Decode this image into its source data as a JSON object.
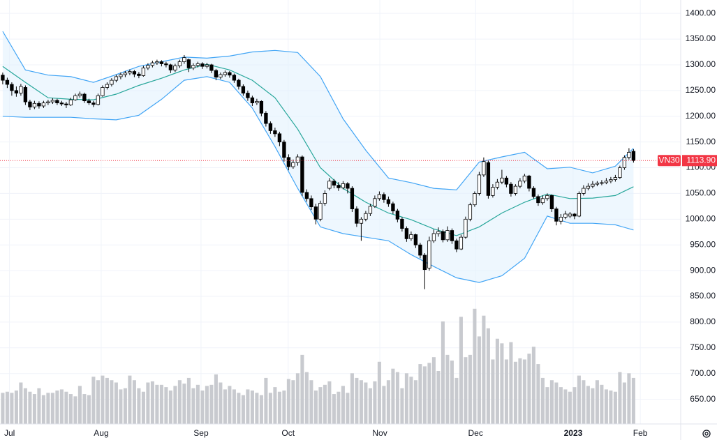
{
  "chart_data": {
    "type": "candlestick",
    "symbol": "VN30",
    "last_price": {
      "value": 1113.9,
      "label": "1113.90"
    },
    "ylim": [
      602,
      1426
    ],
    "yticks": [
      {
        "value": 650,
        "label": "650.00"
      },
      {
        "value": 700,
        "label": "700.00"
      },
      {
        "value": 750,
        "label": "750.00"
      },
      {
        "value": 800,
        "label": "800.00"
      },
      {
        "value": 850,
        "label": "850.00"
      },
      {
        "value": 900,
        "label": "900.00"
      },
      {
        "value": 950,
        "label": "950.00"
      },
      {
        "value": 1000,
        "label": "1000.00"
      },
      {
        "value": 1050,
        "label": "1050.00"
      },
      {
        "value": 1100,
        "label": "1100.00"
      },
      {
        "value": 1150,
        "label": "1150.00"
      },
      {
        "value": 1200,
        "label": "1200.00"
      },
      {
        "value": 1250,
        "label": "1250.00"
      },
      {
        "value": 1300,
        "label": "1300.00"
      },
      {
        "value": 1350,
        "label": "1350.00"
      },
      {
        "value": 1400,
        "label": "1400.00"
      }
    ],
    "xlim": [
      -0.6,
      149.4
    ],
    "xticks": [
      {
        "value": 1.5,
        "label": "Jul"
      },
      {
        "value": 21.7,
        "label": "Aug"
      },
      {
        "value": 43.7,
        "label": "Sep"
      },
      {
        "value": 62.9,
        "label": "Oct"
      },
      {
        "value": 83.1,
        "label": "Nov"
      },
      {
        "value": 104.2,
        "label": "Dec"
      },
      {
        "value": 125.7,
        "label": "2023"
      },
      {
        "value": 140.5,
        "label": "Feb"
      }
    ],
    "grid": true,
    "up_color": "#ffffff",
    "down_color": "#000000",
    "wick_color": "#000000",
    "volume_color": "#c8cacf",
    "band_color": "#42a5f5",
    "basis_color": "#26a69a",
    "band_fill": "#e3f2fd",
    "price_line_color": "#f23645",
    "candles": [
      [
        1280,
        1285,
        1262,
        1270
      ],
      [
        1270,
        1275,
        1255,
        1262
      ],
      [
        1262,
        1266,
        1240,
        1250
      ],
      [
        1250,
        1258,
        1238,
        1245
      ],
      [
        1245,
        1263,
        1240,
        1258
      ],
      [
        1256,
        1260,
        1222,
        1228
      ],
      [
        1228,
        1232,
        1212,
        1218
      ],
      [
        1218,
        1230,
        1214,
        1225
      ],
      [
        1225,
        1229,
        1215,
        1220
      ],
      [
        1220,
        1230,
        1216,
        1226
      ],
      [
        1226,
        1232,
        1222,
        1228
      ],
      [
        1228,
        1235,
        1224,
        1231
      ],
      [
        1231,
        1234,
        1222,
        1226
      ],
      [
        1226,
        1230,
        1220,
        1224
      ],
      [
        1224,
        1228,
        1216,
        1222
      ],
      [
        1222,
        1236,
        1220,
        1232
      ],
      [
        1232,
        1244,
        1230,
        1240
      ],
      [
        1240,
        1248,
        1236,
        1243
      ],
      [
        1243,
        1246,
        1226,
        1230
      ],
      [
        1230,
        1234,
        1222,
        1226
      ],
      [
        1226,
        1230,
        1218,
        1223
      ],
      [
        1223,
        1244,
        1221,
        1240
      ],
      [
        1240,
        1260,
        1238,
        1256
      ],
      [
        1256,
        1266,
        1252,
        1262
      ],
      [
        1262,
        1274,
        1258,
        1270
      ],
      [
        1270,
        1281,
        1266,
        1277
      ],
      [
        1277,
        1285,
        1272,
        1281
      ],
      [
        1281,
        1288,
        1276,
        1284
      ],
      [
        1284,
        1291,
        1280,
        1287
      ],
      [
        1287,
        1290,
        1276,
        1282
      ],
      [
        1282,
        1286,
        1274,
        1279
      ],
      [
        1279,
        1298,
        1277,
        1294
      ],
      [
        1294,
        1303,
        1290,
        1299
      ],
      [
        1299,
        1308,
        1295,
        1304
      ],
      [
        1304,
        1310,
        1300,
        1306
      ],
      [
        1306,
        1309,
        1297,
        1302
      ],
      [
        1302,
        1306,
        1295,
        1300
      ],
      [
        1300,
        1302,
        1284,
        1290
      ],
      [
        1290,
        1302,
        1286,
        1298
      ],
      [
        1298,
        1310,
        1294,
        1306
      ],
      [
        1306,
        1319,
        1302,
        1314
      ],
      [
        1310,
        1312,
        1286,
        1294
      ],
      [
        1294,
        1303,
        1290,
        1299
      ],
      [
        1299,
        1306,
        1295,
        1302
      ],
      [
        1302,
        1305,
        1292,
        1297
      ],
      [
        1297,
        1304,
        1293,
        1300
      ],
      [
        1300,
        1302,
        1284,
        1289
      ],
      [
        1289,
        1292,
        1270,
        1276
      ],
      [
        1276,
        1285,
        1272,
        1281
      ],
      [
        1281,
        1289,
        1277,
        1285
      ],
      [
        1285,
        1288,
        1275,
        1280
      ],
      [
        1280,
        1283,
        1265,
        1270
      ],
      [
        1270,
        1273,
        1252,
        1258
      ],
      [
        1258,
        1262,
        1240,
        1245
      ],
      [
        1245,
        1250,
        1230,
        1236
      ],
      [
        1236,
        1240,
        1220,
        1226
      ],
      [
        1226,
        1234,
        1222,
        1229
      ],
      [
        1229,
        1231,
        1200,
        1206
      ],
      [
        1206,
        1210,
        1180,
        1186
      ],
      [
        1186,
        1190,
        1166,
        1172
      ],
      [
        1172,
        1178,
        1160,
        1166
      ],
      [
        1166,
        1170,
        1142,
        1150
      ],
      [
        1150,
        1154,
        1112,
        1120
      ],
      [
        1120,
        1126,
        1095,
        1102
      ],
      [
        1102,
        1116,
        1098,
        1110
      ],
      [
        1110,
        1126,
        1104,
        1121
      ],
      [
        1121,
        1124,
        1045,
        1052
      ],
      [
        1052,
        1058,
        1034,
        1040
      ],
      [
        1040,
        1046,
        1018,
        1024
      ],
      [
        1024,
        1030,
        990,
        1000
      ],
      [
        1000,
        1036,
        996,
        1031
      ],
      [
        1031,
        1056,
        1026,
        1050
      ],
      [
        1060,
        1080,
        1056,
        1074
      ],
      [
        1074,
        1078,
        1060,
        1066
      ],
      [
        1066,
        1072,
        1055,
        1061
      ],
      [
        1061,
        1074,
        1058,
        1069
      ],
      [
        1069,
        1072,
        1050,
        1060
      ],
      [
        1060,
        1064,
        1014,
        1020
      ],
      [
        1020,
        1025,
        985,
        992
      ],
      [
        992,
        1004,
        958,
        1000
      ],
      [
        1000,
        1016,
        996,
        1011
      ],
      [
        1011,
        1030,
        1006,
        1025
      ],
      [
        1025,
        1046,
        1022,
        1040
      ],
      [
        1040,
        1054,
        1036,
        1048
      ],
      [
        1048,
        1052,
        1032,
        1038
      ],
      [
        1038,
        1044,
        1024,
        1030
      ],
      [
        1030,
        1034,
        1010,
        1016
      ],
      [
        1016,
        1020,
        994,
        1000
      ],
      [
        1000,
        1004,
        976,
        982
      ],
      [
        982,
        986,
        956,
        962
      ],
      [
        962,
        976,
        958,
        970
      ],
      [
        970,
        972,
        944,
        950
      ],
      [
        950,
        954,
        924,
        930
      ],
      [
        930,
        934,
        864,
        902
      ],
      [
        905,
        966,
        900,
        958
      ],
      [
        958,
        980,
        954,
        972
      ],
      [
        972,
        984,
        966,
        976
      ],
      [
        976,
        980,
        955,
        960
      ],
      [
        960,
        986,
        956,
        978
      ],
      [
        978,
        982,
        952,
        958
      ],
      [
        958,
        962,
        936,
        942
      ],
      [
        942,
        970,
        940,
        965
      ],
      [
        965,
        1005,
        962,
        1000
      ],
      [
        1000,
        1032,
        996,
        1028
      ],
      [
        1028,
        1054,
        1024,
        1050
      ],
      [
        1050,
        1092,
        1046,
        1086
      ],
      [
        1086,
        1120,
        1082,
        1112
      ],
      [
        1110,
        1114,
        1040,
        1046
      ],
      [
        1046,
        1068,
        1042,
        1062
      ],
      [
        1062,
        1078,
        1058,
        1072
      ],
      [
        1072,
        1096,
        1068,
        1080
      ],
      [
        1080,
        1084,
        1062,
        1068
      ],
      [
        1068,
        1072,
        1044,
        1050
      ],
      [
        1050,
        1068,
        1046,
        1064
      ],
      [
        1064,
        1080,
        1060,
        1074
      ],
      [
        1074,
        1088,
        1070,
        1084
      ],
      [
        1084,
        1086,
        1054,
        1060
      ],
      [
        1060,
        1064,
        1040,
        1044
      ],
      [
        1044,
        1048,
        1026,
        1032
      ],
      [
        1032,
        1046,
        1028,
        1040
      ],
      [
        1040,
        1050,
        1036,
        1046
      ],
      [
        1046,
        1048,
        1014,
        1020
      ],
      [
        1020,
        1024,
        988,
        996
      ],
      [
        996,
        1010,
        990,
        1004
      ],
      [
        1004,
        1016,
        1000,
        1010
      ],
      [
        1006,
        1014,
        1002,
        1010
      ],
      [
        1010,
        1012,
        1000,
        1006
      ],
      [
        1006,
        1054,
        1004,
        1050
      ],
      [
        1050,
        1066,
        1046,
        1060
      ],
      [
        1060,
        1070,
        1056,
        1064
      ],
      [
        1064,
        1074,
        1060,
        1068
      ],
      [
        1068,
        1074,
        1064,
        1070
      ],
      [
        1070,
        1076,
        1066,
        1071
      ],
      [
        1071,
        1080,
        1068,
        1074
      ],
      [
        1074,
        1082,
        1070,
        1077
      ],
      [
        1077,
        1086,
        1073,
        1081
      ],
      [
        1081,
        1104,
        1078,
        1100
      ],
      [
        1100,
        1124,
        1096,
        1120
      ],
      [
        1120,
        1138,
        1116,
        1130
      ],
      [
        1132,
        1136,
        1110,
        1114
      ]
    ],
    "volume_lim": [
      0,
      368
    ],
    "volume": [
      27,
      28,
      27,
      29,
      36,
      31,
      28,
      26,
      31,
      25,
      27,
      27,
      29,
      30,
      28,
      26,
      24,
      33,
      26,
      25,
      41,
      38,
      42,
      40,
      38,
      36,
      30,
      31,
      42,
      38,
      31,
      28,
      36,
      37,
      34,
      34,
      32,
      29,
      33,
      38,
      35,
      40,
      31,
      34,
      29,
      33,
      34,
      43,
      36,
      30,
      33,
      30,
      27,
      25,
      30,
      29,
      27,
      25,
      40,
      27,
      32,
      28,
      29,
      39,
      38,
      44,
      60,
      45,
      38,
      29,
      32,
      34,
      37,
      26,
      28,
      33,
      27,
      44,
      40,
      38,
      36,
      31,
      37,
      54,
      33,
      38,
      48,
      45,
      31,
      44,
      41,
      38,
      52,
      50,
      53,
      58,
      46,
      89,
      60,
      55,
      40,
      93,
      58,
      60,
      100,
      76,
      94,
      83,
      56,
      74,
      70,
      56,
      71,
      54,
      57,
      56,
      61,
      67,
      52,
      40,
      32,
      38,
      36,
      32,
      30,
      28,
      32,
      42,
      38,
      33,
      31,
      38,
      34,
      30,
      29,
      28,
      45,
      36,
      44,
      40
    ],
    "bollinger": {
      "x": [
        0,
        5,
        10,
        15,
        20,
        25,
        30,
        35,
        40,
        45,
        50,
        55,
        60,
        65,
        70,
        75,
        80,
        85,
        90,
        95,
        100,
        105,
        110,
        115,
        120,
        125,
        130,
        135,
        139
      ],
      "upper": [
        1365,
        1290,
        1280,
        1277,
        1266,
        1281,
        1297,
        1306,
        1315,
        1313,
        1317,
        1325,
        1328,
        1324,
        1277,
        1195,
        1134,
        1080,
        1071,
        1060,
        1057,
        1111,
        1121,
        1130,
        1098,
        1101,
        1090,
        1103,
        1138
      ],
      "middle": [
        1297,
        1266,
        1236,
        1233,
        1232,
        1243,
        1260,
        1274,
        1290,
        1301,
        1290,
        1270,
        1236,
        1175,
        1100,
        1060,
        1033,
        1012,
        999,
        981,
        968,
        985,
        1012,
        1033,
        1049,
        1040,
        1041,
        1046,
        1063
      ],
      "lower": [
        1200,
        1198,
        1198,
        1198,
        1195,
        1193,
        1202,
        1233,
        1270,
        1277,
        1266,
        1216,
        1141,
        1060,
        985,
        972,
        965,
        958,
        931,
        908,
        886,
        877,
        890,
        924,
        1006,
        992,
        992,
        989,
        979
      ]
    }
  }
}
